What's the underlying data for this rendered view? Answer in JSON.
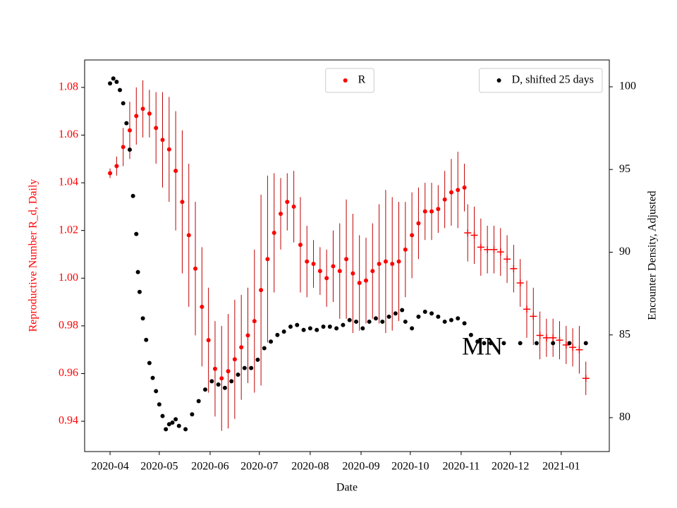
{
  "chart_data": {
    "type": "scatter",
    "xlabel": "Date",
    "ylabel": "Reproductive Number R_d, Daily",
    "y2label": "Encounter Density, Adjusted",
    "annotation": "MN",
    "xlim": [
      -15.5,
      304.3
    ],
    "xticks": [
      {
        "value": 0,
        "label": "2020-04"
      },
      {
        "value": 30,
        "label": "2020-05"
      },
      {
        "value": 61,
        "label": "2020-06"
      },
      {
        "value": 91,
        "label": "2020-07"
      },
      {
        "value": 122,
        "label": "2020-08"
      },
      {
        "value": 153,
        "label": "2020-09"
      },
      {
        "value": 183,
        "label": "2020-10"
      },
      {
        "value": 214,
        "label": "2020-11"
      },
      {
        "value": 244,
        "label": "2020-12"
      },
      {
        "value": 275,
        "label": "2021-01"
      }
    ],
    "ylim": [
      0.9273,
      1.0915
    ],
    "yticks": [
      0.94,
      0.96,
      0.98,
      {
        "value": 1.0,
        "label": "1.00"
      },
      1.02,
      1.04,
      1.06,
      1.08
    ],
    "ycolor": "#ff0000",
    "y2lim": [
      77.95,
      101.62
    ],
    "y2ticks": [
      80,
      85,
      90,
      95,
      100
    ],
    "series": [
      {
        "name": "R",
        "color": "#ff0000",
        "marker": "dot",
        "legend": "upper center",
        "x": [
          0,
          4,
          8,
          12,
          16,
          20,
          24,
          28,
          32,
          36,
          40,
          44,
          48,
          52,
          56,
          60,
          64,
          68,
          72,
          76,
          80,
          84,
          88,
          92,
          96,
          100,
          104,
          108,
          112,
          116,
          120,
          124,
          128,
          132,
          136,
          140,
          144,
          148,
          152,
          156,
          160,
          164,
          168,
          172,
          176,
          180,
          184,
          188,
          192,
          196,
          200,
          204,
          208,
          212,
          216
        ],
        "values": [
          1.044,
          1.047,
          1.055,
          1.062,
          1.068,
          1.071,
          1.069,
          1.063,
          1.058,
          1.054,
          1.045,
          1.032,
          1.018,
          1.004,
          0.988,
          0.974,
          0.962,
          0.958,
          0.961,
          0.966,
          0.971,
          0.976,
          0.982,
          0.995,
          1.008,
          1.019,
          1.027,
          1.032,
          1.03,
          1.014,
          1.007,
          1.006,
          1.003,
          1.0,
          1.005,
          1.003,
          1.008,
          1.002,
          0.998,
          0.999,
          1.003,
          1.006,
          1.007,
          1.006,
          1.007,
          1.012,
          1.018,
          1.023,
          1.028,
          1.028,
          1.029,
          1.033,
          1.036,
          1.037,
          1.038
        ],
        "errors": [
          0.002,
          0.004,
          0.008,
          0.012,
          0.012,
          0.012,
          0.01,
          0.015,
          0.02,
          0.022,
          0.025,
          0.03,
          0.03,
          0.028,
          0.025,
          0.022,
          0.02,
          0.022,
          0.024,
          0.025,
          0.022,
          0.02,
          0.03,
          0.04,
          0.035,
          0.025,
          0.015,
          0.012,
          0.015,
          0.02,
          0.015,
          0.01,
          0.01,
          0.012,
          0.015,
          0.02,
          0.025,
          0.025,
          0.02,
          0.018,
          0.02,
          0.025,
          0.03,
          0.028,
          0.025,
          0.02,
          0.018,
          0.015,
          0.012,
          0.012,
          0.01,
          0.012,
          0.014,
          0.016,
          0.01
        ]
      },
      {
        "color": "#ff0000",
        "marker": "plus",
        "x": [
          218,
          222,
          226,
          230,
          234,
          238,
          242,
          246,
          250,
          254,
          258,
          262,
          266,
          270,
          274,
          278,
          282,
          286,
          290
        ],
        "values": [
          1.019,
          1.018,
          1.013,
          1.012,
          1.012,
          1.011,
          1.008,
          1.004,
          0.998,
          0.987,
          0.984,
          0.976,
          0.975,
          0.975,
          0.974,
          0.972,
          0.971,
          0.97,
          0.958
        ],
        "errors": [
          0.012,
          0.012,
          0.012,
          0.01,
          0.01,
          0.01,
          0.01,
          0.01,
          0.01,
          0.012,
          0.012,
          0.01,
          0.008,
          0.008,
          0.008,
          0.008,
          0.008,
          0.01,
          0.007
        ]
      },
      {
        "name": "D, shifted 25 days",
        "color": "#000000",
        "marker": "dot",
        "axis": "y2",
        "legend": "upper right",
        "x": [
          0,
          2,
          4,
          6,
          8,
          10,
          12,
          14,
          16,
          17,
          18,
          20,
          22,
          24,
          26,
          28,
          30,
          32,
          34,
          36,
          38,
          40,
          42,
          46,
          50,
          54,
          58,
          62,
          66,
          70,
          74,
          78,
          82,
          86,
          90,
          94,
          98,
          102,
          106,
          110,
          114,
          118,
          122,
          126,
          130,
          134,
          138,
          142,
          146,
          150,
          154,
          158,
          162,
          166,
          170,
          174,
          178,
          180,
          184,
          188,
          192,
          196,
          200,
          204,
          208,
          212,
          216,
          220,
          224,
          228,
          232,
          240,
          250,
          260,
          270,
          280,
          290
        ],
        "values": [
          100.2,
          100.5,
          100.3,
          99.8,
          99.0,
          97.8,
          96.2,
          93.4,
          91.1,
          88.8,
          87.6,
          86.0,
          84.7,
          83.3,
          82.4,
          81.6,
          80.8,
          80.1,
          79.3,
          79.6,
          79.7,
          79.9,
          79.5,
          79.3,
          80.2,
          81.0,
          81.7,
          82.2,
          82.0,
          81.8,
          82.2,
          82.6,
          83.0,
          83.0,
          83.5,
          84.2,
          84.6,
          85.0,
          85.2,
          85.5,
          85.6,
          85.3,
          85.4,
          85.3,
          85.5,
          85.5,
          85.4,
          85.6,
          85.9,
          85.8,
          85.4,
          85.8,
          86.0,
          85.8,
          86.1,
          86.3,
          86.5,
          85.8,
          85.4,
          86.1,
          86.4,
          86.3,
          86.1,
          85.8,
          85.9,
          86.0,
          85.7,
          85.0,
          84.6,
          84.5,
          84.5,
          84.5,
          84.5,
          84.5,
          84.5,
          84.5,
          84.5
        ]
      }
    ]
  }
}
